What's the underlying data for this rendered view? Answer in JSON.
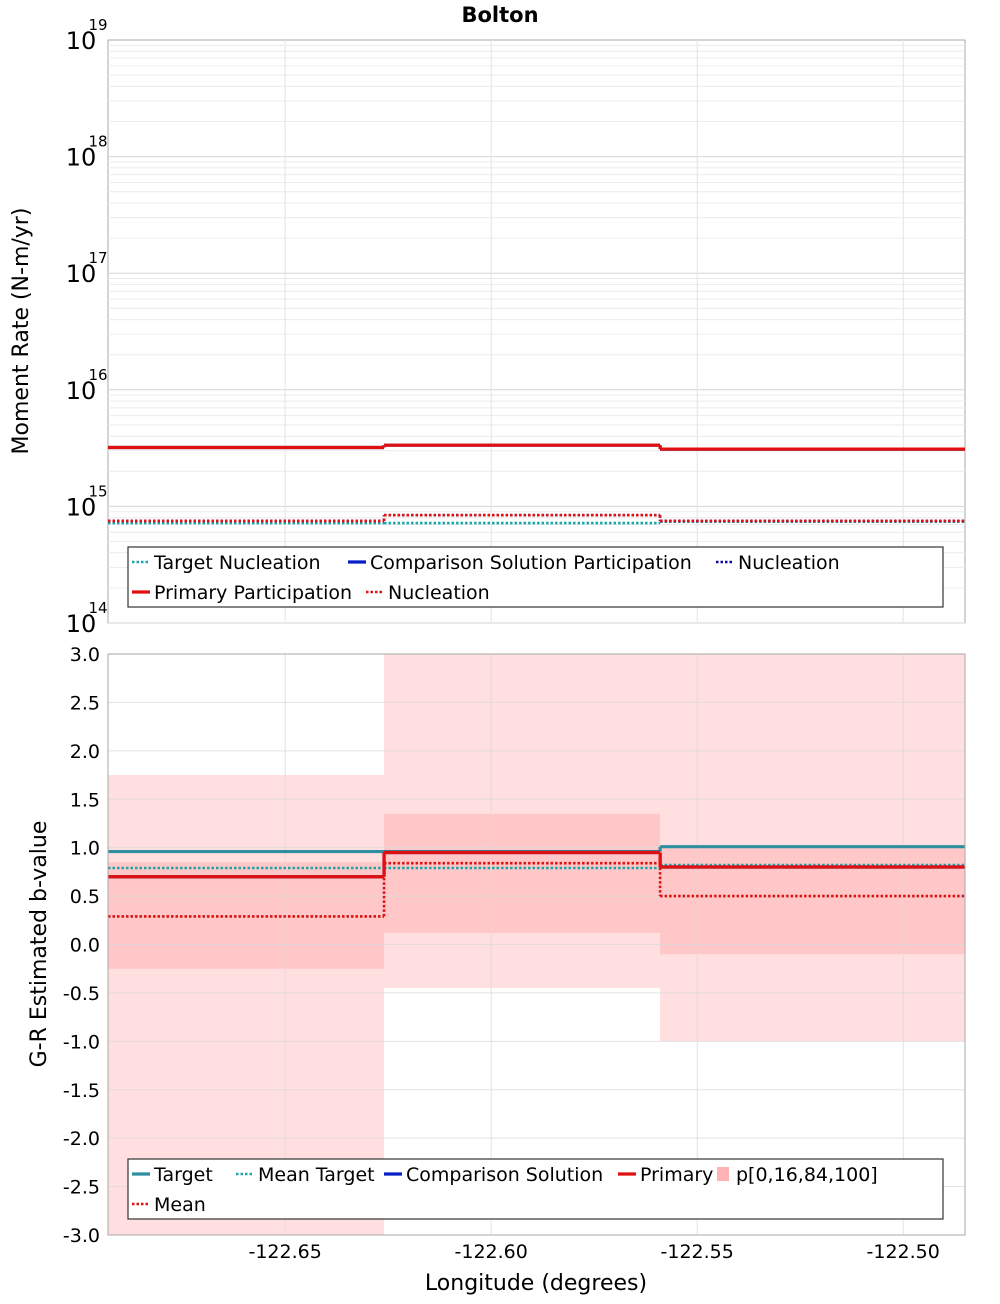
{
  "title": "Bolton",
  "chart_data": [
    {
      "type": "line",
      "panel": "moment-rate",
      "title": "Bolton",
      "ylabel": "Moment Rate (N-m/yr)",
      "yscale": "log",
      "ylim": [
        100000000000000.0,
        1e+19
      ],
      "xlim": [
        -122.693,
        -122.485
      ],
      "x_bins": [
        [
          -122.693,
          -122.626
        ],
        [
          -122.626,
          -122.559
        ],
        [
          -122.559,
          -122.485
        ]
      ],
      "y_tick_labels": [
        {
          "base": "10",
          "exp": "14",
          "value": 100000000000000.0
        },
        {
          "base": "10",
          "exp": "15",
          "value": 1000000000000000.0
        },
        {
          "base": "10",
          "exp": "16",
          "value": 1e+16
        },
        {
          "base": "10",
          "exp": "17",
          "value": 1e+17
        },
        {
          "base": "10",
          "exp": "18",
          "value": 1e+18
        },
        {
          "base": "10",
          "exp": "19",
          "value": 1e+19
        }
      ],
      "grid": true,
      "legend": "bottom",
      "series": [
        {
          "name": "Target Nucleation",
          "style": "dotted",
          "color": "#1aa6a6",
          "values": [
            720000000000000.0,
            720000000000000.0,
            740000000000000.0
          ]
        },
        {
          "name": "Comparison Solution Participation",
          "style": "solid",
          "color": "#0a1ec8",
          "values": [
            3200000000000000.0,
            3350000000000000.0,
            3100000000000000.0
          ]
        },
        {
          "name": "Nucleation",
          "style": "dotted",
          "color": "#0a0aa0",
          "values": [
            750000000000000.0,
            840000000000000.0,
            750000000000000.0
          ]
        },
        {
          "name": "Primary Participation",
          "style": "solid",
          "color": "#e01010",
          "values": [
            3200000000000000.0,
            3350000000000000.0,
            3100000000000000.0
          ]
        },
        {
          "name": "Nucleation",
          "style": "dotted",
          "color": "#e01010",
          "values": [
            750000000000000.0,
            840000000000000.0,
            750000000000000.0
          ]
        }
      ]
    },
    {
      "type": "line",
      "panel": "b-value",
      "ylabel": "G-R Estimated b-value",
      "xlabel": "Longitude (degrees)",
      "ylim": [
        -3.0,
        3.0
      ],
      "xlim": [
        -122.693,
        -122.485
      ],
      "x_bins": [
        [
          -122.693,
          -122.626
        ],
        [
          -122.626,
          -122.559
        ],
        [
          -122.559,
          -122.485
        ]
      ],
      "y_ticks": [
        "-3.0",
        "-2.5",
        "-2.0",
        "-1.5",
        "-1.0",
        "-0.5",
        "0.0",
        "0.5",
        "1.0",
        "1.5",
        "2.0",
        "2.5",
        "3.0"
      ],
      "x_ticks": [
        "-122.65",
        "-122.60",
        "-122.55",
        "-122.50"
      ],
      "grid": true,
      "legend": "bottom",
      "bands": {
        "name": "p[0,16,84,100]",
        "color": "#ffb3b3",
        "p0_100": [
          [
            -3.0,
            1.75
          ],
          [
            -0.45,
            3.0
          ],
          [
            -1.0,
            3.0
          ]
        ],
        "p16_84": [
          [
            -0.25,
            0.85
          ],
          [
            0.12,
            1.35
          ],
          [
            -0.1,
            1.0
          ]
        ]
      },
      "series": [
        {
          "name": "Target",
          "style": "solid",
          "color": "#2e8fa0",
          "values": [
            0.96,
            0.96,
            1.01
          ]
        },
        {
          "name": "Mean Target",
          "style": "dotted",
          "color": "#1aa6a6",
          "values": [
            0.79,
            0.79,
            0.82
          ]
        },
        {
          "name": "Comparison Solution",
          "style": "solid",
          "color": "#0a1ec8",
          "values": [
            0.7,
            0.95,
            0.8
          ]
        },
        {
          "name": "Primary",
          "style": "solid",
          "color": "#e01010",
          "values": [
            0.7,
            0.95,
            0.8
          ]
        },
        {
          "name": "Mean",
          "style": "dotted",
          "color": "#e01010",
          "values": [
            0.29,
            0.84,
            0.5
          ]
        }
      ]
    }
  ]
}
